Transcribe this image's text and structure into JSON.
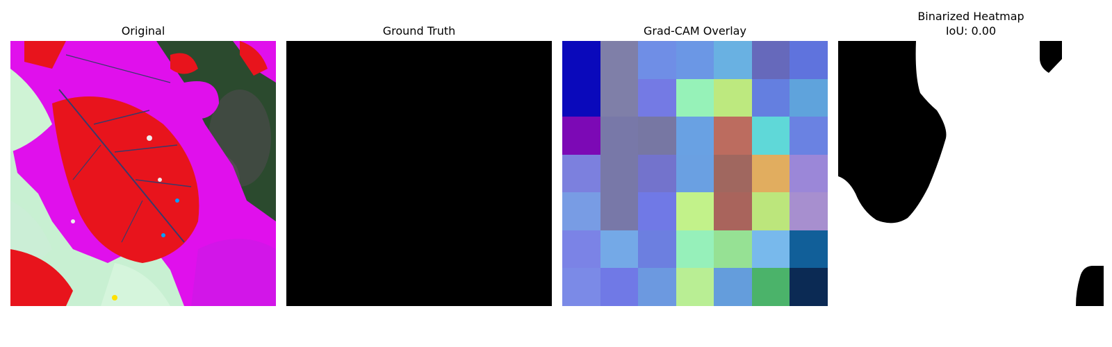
{
  "panels": {
    "original": {
      "title": "Original"
    },
    "ground_truth": {
      "title": "Ground Truth"
    },
    "gradcam": {
      "title": "Grad-CAM Overlay",
      "grid_colors": [
        [
          "#0a09bb",
          "#7f7fa8",
          "#6f8ee6",
          "#6b97e5",
          "#69b1e2",
          "#6669bb",
          "#5f73dd"
        ],
        [
          "#0a09bb",
          "#7f7fa8",
          "#747ae4",
          "#96f2b8",
          "#bde97f",
          "#647fe0",
          "#5fa3dc"
        ],
        [
          "#7c09b5",
          "#7878a8",
          "#7777a3",
          "#69a1e3",
          "#bc6c5f",
          "#5fd8d8",
          "#6a82e2"
        ],
        [
          "#7c80de",
          "#7878a8",
          "#7373cc",
          "#6aa0e2",
          "#a0675f",
          "#e1ad5f",
          "#9b87d8"
        ],
        [
          "#789ce4",
          "#7878a8",
          "#7079e6",
          "#c2f28a",
          "#a9645c",
          "#bce67c",
          "#a78fcf"
        ],
        [
          "#7b83e6",
          "#74a9e7",
          "#6c7fe0",
          "#96f0ba",
          "#96e194",
          "#78b9ec",
          "#115f99"
        ],
        [
          "#7b8ae7",
          "#7079e6",
          "#6c99e0",
          "#b9ee94",
          "#649ddc",
          "#4bb36a",
          "#0b2a54"
        ]
      ]
    },
    "binarized": {
      "title_line1": "Binarized Heatmap",
      "title_line2": "IoU: 0.00"
    }
  }
}
